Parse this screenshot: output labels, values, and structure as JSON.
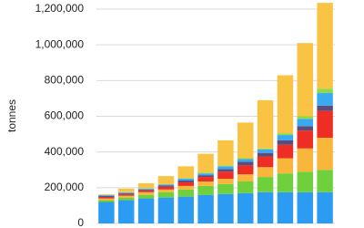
{
  "chart_data": {
    "type": "stacked-bar",
    "y_label": "tonnes",
    "categories": [
      null,
      null,
      null,
      null,
      null,
      null,
      null,
      null,
      null,
      null,
      null,
      null
    ],
    "ylim": [
      0,
      1200000
    ],
    "yticks": [
      0,
      {
        "value": 200000,
        "label": "200,000"
      },
      {
        "value": 400000,
        "label": "400,000"
      },
      {
        "value": 600000,
        "label": "600,000"
      },
      {
        "value": 800000,
        "label": "800,000"
      },
      {
        "value": 1000000,
        "label": "1,000,000"
      },
      {
        "value": 1200000,
        "label": "1,200,000"
      }
    ],
    "grid": true,
    "series": [
      {
        "color": "#2b9cf2",
        "values": [
          120000,
          130000,
          140000,
          145000,
          150000,
          160000,
          165000,
          170000,
          175000,
          175000,
          175000,
          175000
        ]
      },
      {
        "color": "#6fd03c",
        "values": [
          10000,
          15000,
          20000,
          30000,
          40000,
          50000,
          55000,
          65000,
          85000,
          105000,
          115000,
          125000
        ]
      },
      {
        "color": "#f8b73a",
        "values": [
          10000,
          10000,
          15000,
          15000,
          20000,
          25000,
          30000,
          40000,
          55000,
          85000,
          130000,
          180000
        ]
      },
      {
        "color": "#ee2d24",
        "values": [
          8000,
          8000,
          10000,
          15000,
          20000,
          25000,
          40000,
          50000,
          60000,
          75000,
          100000,
          150000
        ]
      },
      {
        "color": "#5b4c7c",
        "values": [
          5000,
          5000,
          5000,
          8000,
          10000,
          10000,
          15000,
          20000,
          20000,
          25000,
          25000,
          30000
        ]
      },
      {
        "color": "#3aaaf0",
        "values": [
          5000,
          5000,
          5000,
          5000,
          10000,
          10000,
          15000,
          15000,
          20000,
          30000,
          40000,
          70000
        ]
      },
      {
        "color": "#8fd94f",
        "values": [
          2000,
          2000,
          3000,
          3000,
          4000,
          5000,
          5000,
          5000,
          5000,
          10000,
          15000,
          25000
        ]
      },
      {
        "color": "#f9c444",
        "values": [
          3000,
          20000,
          27000,
          44000,
          66000,
          105000,
          140000,
          200000,
          270000,
          325000,
          410000,
          480000
        ]
      }
    ]
  }
}
